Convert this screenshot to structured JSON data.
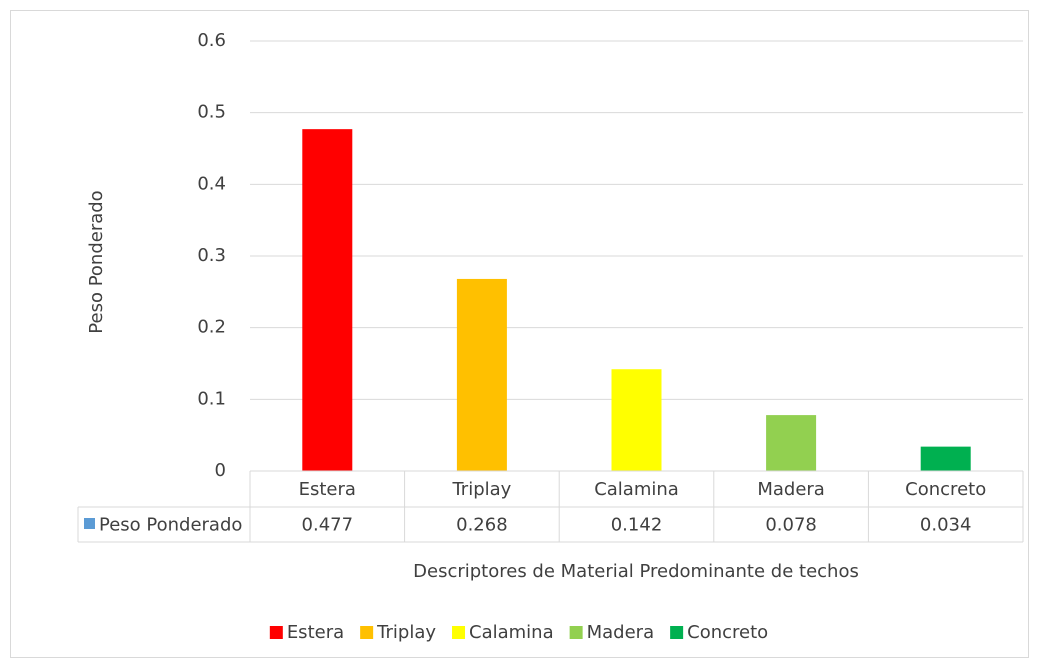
{
  "chart_data": {
    "type": "bar",
    "categories": [
      "Estera",
      "Triplay",
      "Calamina",
      "Madera",
      "Concreto"
    ],
    "series": [
      {
        "name": "Peso Ponderado",
        "color": "#5b9bd5",
        "values": [
          0.477,
          0.268,
          0.142,
          0.078,
          0.034
        ]
      }
    ],
    "colors": [
      "#ff0000",
      "#ffc000",
      "#ffff00",
      "#92d050",
      "#00b050"
    ],
    "y_label": "Peso Ponderado",
    "x_label": "Descriptores de Material Predominante de techos",
    "ylim": [
      0,
      0.6
    ],
    "yticks": [
      0,
      0.1,
      0.2,
      0.3,
      0.4,
      0.5,
      0.6
    ],
    "grid": true,
    "legend": "bottom",
    "data_table": true
  }
}
